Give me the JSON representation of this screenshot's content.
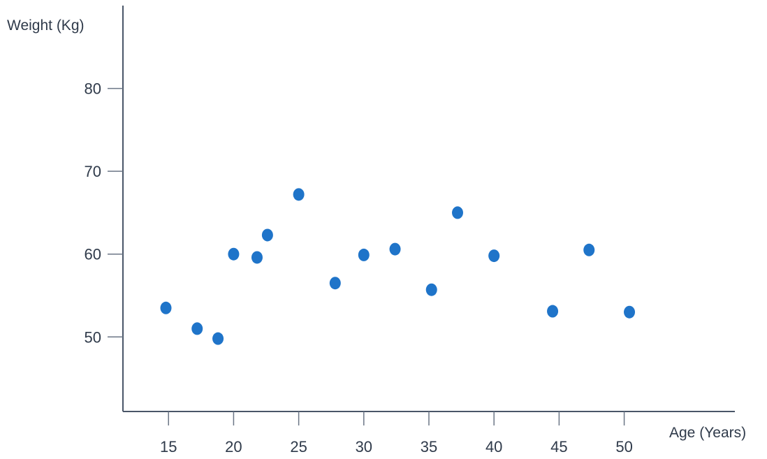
{
  "colors": {
    "point": "#1f74c9",
    "axis": "#4a5668",
    "text": "#2f3a4a"
  },
  "chart_data": {
    "type": "scatter",
    "title": "",
    "xlabel": "Age (Years)",
    "ylabel": "Weight (Kg)",
    "xlim": [
      11.5,
      58.5
    ],
    "ylim": [
      41,
      90
    ],
    "xticks": [
      15,
      20,
      25,
      30,
      35,
      40,
      45,
      50
    ],
    "xtick_labels": [
      "15",
      "20",
      "25",
      "30",
      "35",
      "40",
      "45",
      "50"
    ],
    "yticks": [
      50,
      60,
      70,
      80
    ],
    "ytick_labels": [
      "50",
      "60",
      "70",
      "80"
    ],
    "grid": false,
    "legend": "none",
    "series": [
      {
        "points": [
          [
            14.8,
            53.5
          ],
          [
            17.2,
            51.0
          ],
          [
            18.8,
            49.8
          ],
          [
            20.0,
            60.0
          ],
          [
            21.8,
            59.6
          ],
          [
            22.6,
            62.3
          ],
          [
            25.0,
            67.2
          ],
          [
            27.8,
            56.5
          ],
          [
            30.0,
            59.9
          ],
          [
            32.4,
            60.6
          ],
          [
            35.2,
            55.7
          ],
          [
            37.2,
            65.0
          ],
          [
            40.0,
            59.8
          ],
          [
            44.5,
            53.1
          ],
          [
            47.3,
            60.5
          ],
          [
            50.4,
            53.0
          ]
        ]
      }
    ]
  }
}
